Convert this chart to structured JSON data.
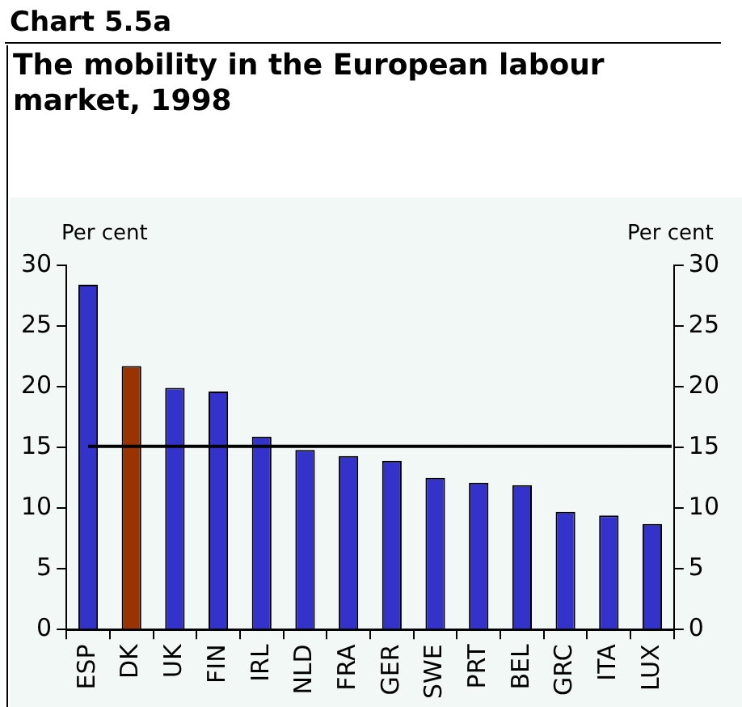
{
  "chart_data": {
    "type": "bar",
    "title": "Chart 5.5a",
    "subtitle": "The mobility in the European labour market, 1998",
    "ylabel": "Per cent",
    "y2label": "Per cent",
    "categories": [
      "ESP",
      "DK",
      "UK",
      "FIN",
      "IRL",
      "NLD",
      "FRA",
      "GER",
      "SWE",
      "PRT",
      "BEL",
      "GRC",
      "ITA",
      "LUX"
    ],
    "values": [
      28.4,
      21.7,
      19.9,
      19.6,
      15.9,
      14.8,
      14.3,
      13.9,
      12.5,
      12.1,
      11.9,
      9.7,
      9.4,
      8.7
    ],
    "colors": [
      "#3333cc",
      "#993300",
      "#3333cc",
      "#3333cc",
      "#3333cc",
      "#3333cc",
      "#3333cc",
      "#3333cc",
      "#3333cc",
      "#3333cc",
      "#3333cc",
      "#3333cc",
      "#3333cc",
      "#3333cc"
    ],
    "ylim": [
      0,
      30
    ],
    "yticks": [
      0,
      5,
      10,
      15,
      20,
      25,
      30
    ],
    "y2lim": [
      0,
      30
    ],
    "y2ticks": [
      0,
      5,
      10,
      15,
      20,
      25,
      30
    ],
    "ref_lines": [
      {
        "axis": "y",
        "value": 15.1,
        "color": "#000000"
      }
    ],
    "grid": false,
    "legend": false
  }
}
